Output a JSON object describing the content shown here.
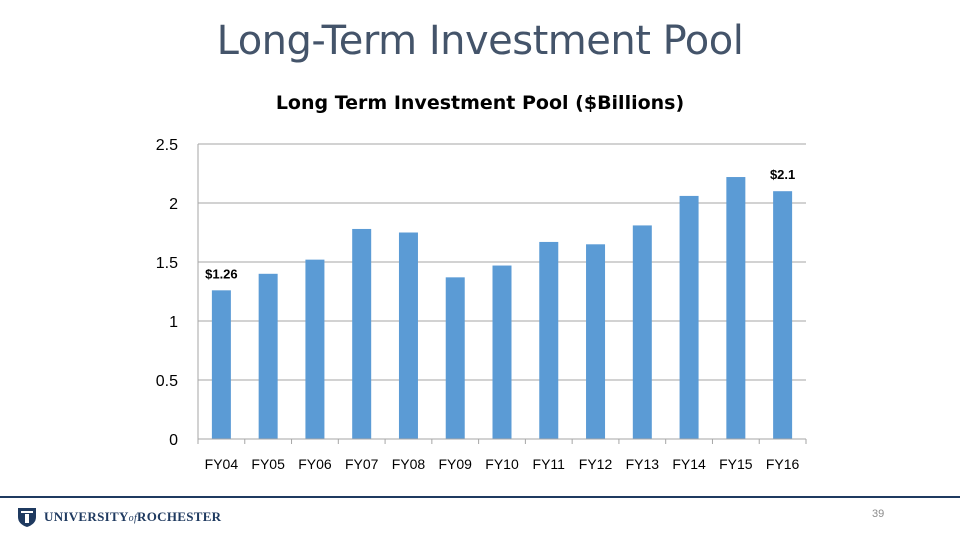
{
  "slide": {
    "title": "Long-Term Investment Pool",
    "page_number": "39"
  },
  "footer": {
    "logo_prefix": "UNIVERSITY",
    "logo_of": "of",
    "logo_suffix": "ROCHESTER"
  },
  "colors": {
    "bar": "#5b9bd5",
    "title": "#44546a",
    "gridline": "#a6a6a6",
    "footer_line": "#1f3a60"
  },
  "chart_data": {
    "type": "bar",
    "title": "Long Term Investment Pool ($Billions)",
    "categories": [
      "FY04",
      "FY05",
      "FY06",
      "FY07",
      "FY08",
      "FY09",
      "FY10",
      "FY11",
      "FY12",
      "FY13",
      "FY14",
      "FY15",
      "FY16"
    ],
    "values": [
      1.26,
      1.4,
      1.52,
      1.78,
      1.75,
      1.37,
      1.47,
      1.67,
      1.65,
      1.81,
      2.06,
      2.22,
      2.1
    ],
    "data_labels": [
      {
        "category": "FY04",
        "text": "$1.26"
      },
      {
        "category": "FY16",
        "text": "$2.1"
      }
    ],
    "ylim": [
      0,
      2.5
    ],
    "yticks": [
      "0",
      "0.5",
      "1",
      "1.5",
      "2",
      "2.5"
    ],
    "ytick_values": [
      0,
      0.5,
      1,
      1.5,
      2,
      2.5
    ],
    "grid": true,
    "legend": "none"
  }
}
